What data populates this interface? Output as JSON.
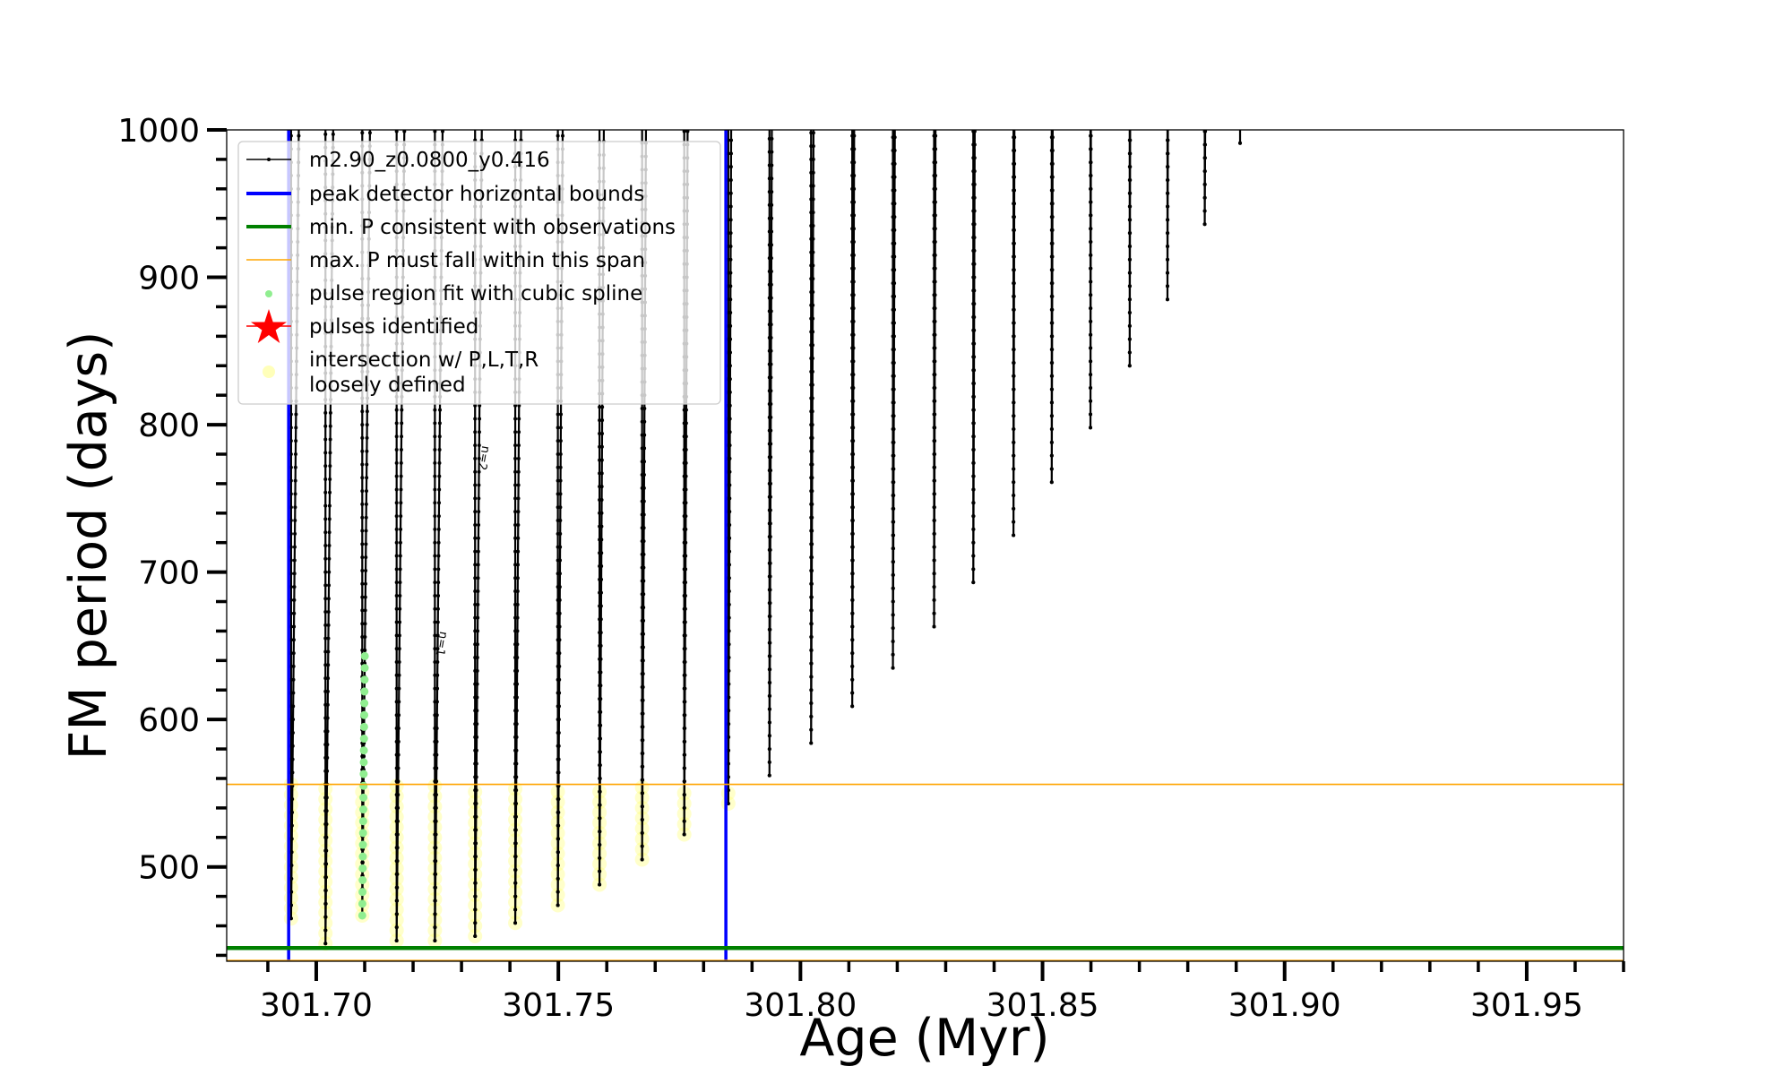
{
  "chart_data": {
    "type": "line",
    "title": "",
    "xlabel": "Age (Myr)",
    "ylabel": "FM period (days)",
    "xlim": [
      301.6815,
      301.97
    ],
    "ylim": [
      436,
      1000
    ],
    "xticks": [
      "301.70",
      "301.75",
      "301.80",
      "301.85",
      "301.90",
      "301.95"
    ],
    "xtick_values": [
      301.7,
      301.75,
      301.8,
      301.85,
      301.9,
      301.95
    ],
    "yticks": [
      "500",
      "600",
      "700",
      "800",
      "900",
      "1000"
    ],
    "ytick_values": [
      500,
      600,
      700,
      800,
      900,
      1000
    ],
    "legend_position": "top-left",
    "series": [
      {
        "name": "m2.90_z0.0800_y0.416",
        "color": "#000000",
        "kind": "line-marker"
      },
      {
        "name": "peak detector horizontal bounds",
        "color": "#0000ff",
        "kind": "vline",
        "x": [
          301.6943,
          301.7846
        ]
      },
      {
        "name": "min. P consistent with observations",
        "color": "#008000",
        "kind": "hline",
        "y": 445
      },
      {
        "name": "max. P must fall within this span",
        "color": "#ffa500",
        "kind": "hline",
        "y": [
          436.5,
          556
        ]
      },
      {
        "name": "pulse region fit with cubic spline",
        "color": "#90ee90",
        "kind": "scatter"
      },
      {
        "name": "pulses identified",
        "color": "#ff0000",
        "kind": "star"
      },
      {
        "name": "intersection w/ P,L,T,R\nloosely defined",
        "label_lines": [
          "intersection w/ P,L,T,R",
          "loosely defined"
        ],
        "color": "#ffff66",
        "kind": "scatter"
      }
    ],
    "pulses": [
      {
        "age": 301.6948,
        "min_period": 465,
        "rise": 0.0016
      },
      {
        "age": 301.7019,
        "min_period": 448,
        "rise": 0.0016
      },
      {
        "age": 301.7095,
        "min_period": 467,
        "rise": 0.0016
      },
      {
        "age": 301.7166,
        "min_period": 450,
        "rise": 0.0016
      },
      {
        "age": 301.7245,
        "min_period": 450,
        "rise": 0.0016
      },
      {
        "age": 301.7328,
        "min_period": 453,
        "rise": 0.0014
      },
      {
        "age": 301.7411,
        "min_period": 462,
        "rise": 0.0012
      },
      {
        "age": 301.7499,
        "min_period": 474,
        "rise": 0.001
      },
      {
        "age": 301.7585,
        "min_period": 488,
        "rise": 0.0009
      },
      {
        "age": 301.7673,
        "min_period": 505,
        "rise": 0.0008
      },
      {
        "age": 301.776,
        "min_period": 522,
        "rise": 0.0007
      },
      {
        "age": 301.7851,
        "min_period": 543,
        "rise": 0.0006
      },
      {
        "age": 301.7936,
        "min_period": 562,
        "rise": 0.0005
      },
      {
        "age": 301.8022,
        "min_period": 584,
        "rise": 0.0005
      },
      {
        "age": 301.8107,
        "min_period": 609,
        "rise": 0.0004
      },
      {
        "age": 301.8191,
        "min_period": 635,
        "rise": 0.0004
      },
      {
        "age": 301.8276,
        "min_period": 663,
        "rise": 0.0003
      },
      {
        "age": 301.8357,
        "min_period": 693,
        "rise": 0.0003
      },
      {
        "age": 301.844,
        "min_period": 725,
        "rise": 0.0002
      },
      {
        "age": 301.8519,
        "min_period": 761,
        "rise": 0.0002
      },
      {
        "age": 301.8599,
        "min_period": 798,
        "rise": 0.0001
      },
      {
        "age": 301.868,
        "min_period": 840,
        "rise": 0.0001
      },
      {
        "age": 301.8758,
        "min_period": 885,
        "rise": 0.0001
      },
      {
        "age": 301.8835,
        "min_period": 936,
        "rise": 0.0001
      },
      {
        "age": 301.8908,
        "min_period": 991,
        "rise": 0.0
      }
    ],
    "spline_region": {
      "pulse_index": 2,
      "from": 467,
      "to": 645
    },
    "annotations": [
      {
        "text": "n=1",
        "age": 301.7256,
        "period": 660
      },
      {
        "text": "n=2",
        "age": 301.7343,
        "period": 786
      }
    ]
  }
}
